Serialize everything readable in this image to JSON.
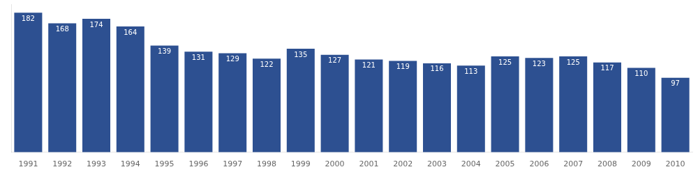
{
  "chart_data": {
    "type": "bar",
    "categories": [
      "1991",
      "1992",
      "1993",
      "1994",
      "1995",
      "1996",
      "1997",
      "1998",
      "1999",
      "2000",
      "2001",
      "2002",
      "2003",
      "2004",
      "2005",
      "2006",
      "2007",
      "2008",
      "2009",
      "2010"
    ],
    "values": [
      182,
      168,
      174,
      164,
      139,
      131,
      129,
      122,
      135,
      127,
      121,
      119,
      116,
      113,
      125,
      123,
      125,
      117,
      110,
      97
    ],
    "color": "#2d5091",
    "ylim": [
      0,
      193
    ],
    "grid": false,
    "data_labels": true,
    "tick_labels": "x"
  }
}
